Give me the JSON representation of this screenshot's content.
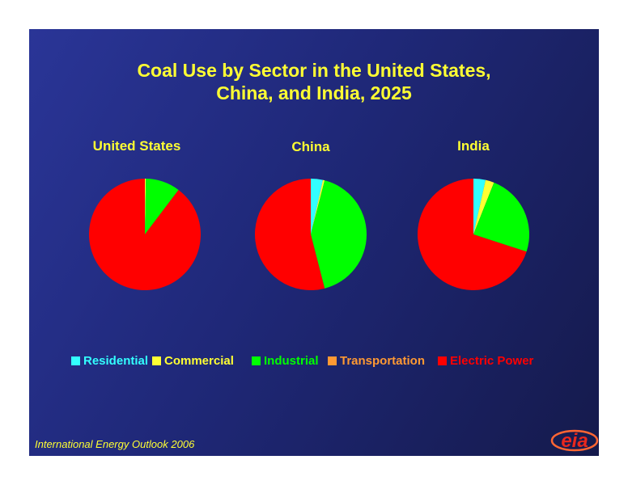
{
  "title_lines": [
    "Coal Use by Sector in the United States,",
    "China, and India, 2025"
  ],
  "footer": "International Energy Outlook 2006",
  "logo_text": "eia",
  "colors": {
    "Residential": "#33ffff",
    "Commercial": "#ffff33",
    "Industrial": "#00ff00",
    "Transportation": "#ff9933",
    "Electric Power": "#ff0000",
    "title": "#ffff33",
    "background": "#1f2878"
  },
  "legend": [
    {
      "label": "Residential",
      "text_color": "#33ffff"
    },
    {
      "label": "Commercial",
      "text_color": "#ffff33"
    },
    {
      "label": "Industrial",
      "text_color": "#00ff00"
    },
    {
      "label": "Transportation",
      "text_color": "#ff9933"
    },
    {
      "label": "Electric Power",
      "text_color": "#ff0000"
    }
  ],
  "chart_data": [
    {
      "type": "pie",
      "title": "United States",
      "categories": [
        "Residential",
        "Commercial",
        "Industrial",
        "Transportation",
        "Electric Power"
      ],
      "values": [
        0,
        0.3,
        10,
        0,
        89.7
      ]
    },
    {
      "type": "pie",
      "title": "China",
      "categories": [
        "Residential",
        "Commercial",
        "Industrial",
        "Transportation",
        "Electric Power"
      ],
      "values": [
        3.5,
        0.5,
        42,
        0,
        54
      ]
    },
    {
      "type": "pie",
      "title": "India",
      "categories": [
        "Residential",
        "Commercial",
        "Industrial",
        "Transportation",
        "Electric Power"
      ],
      "values": [
        3.5,
        2.5,
        24,
        0,
        70
      ]
    }
  ]
}
